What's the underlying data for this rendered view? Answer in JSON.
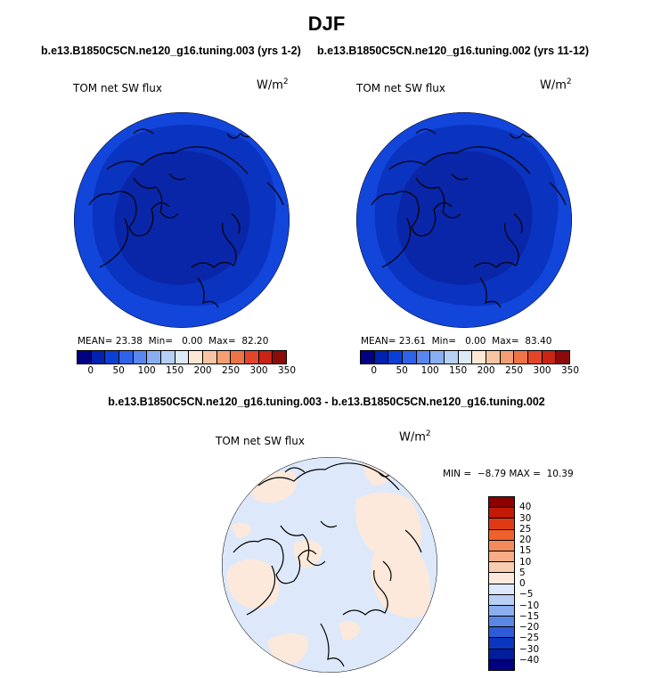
{
  "title": "DJF",
  "panel_left": {
    "case": "b.e13.B1850C5CN.ne120_g16.tuning.003 (yrs 1-2)",
    "variable": "TOM net SW flux",
    "units_base": "W/m",
    "units_exp": "2",
    "mean_label": "MEAN=",
    "mean_value": "23.38",
    "min_label": "Min=",
    "min_value": "0.00",
    "max_label": "Max=",
    "max_value": "82.20"
  },
  "panel_right": {
    "case": "b.e13.B1850C5CN.ne120_g16.tuning.002 (yrs 11-12)",
    "variable": "TOM net SW flux",
    "units_base": "W/m",
    "units_exp": "2",
    "mean_label": "MEAN=",
    "mean_value": "23.61",
    "min_label": "Min=",
    "min_value": "0.00",
    "max_label": "Max=",
    "max_value": "83.40"
  },
  "panel_diff": {
    "title": "b.e13.B1850C5CN.ne120_g16.tuning.003 - b.e13.B1850C5CN.ne120_g16.tuning.002",
    "variable": "TOM net SW flux",
    "units_base": "W/m",
    "units_exp": "2",
    "minmax_text": "MIN =  −8.79 MAX =  10.39"
  },
  "abs_colorbar": {
    "labels": [
      "0",
      "50",
      "100",
      "150",
      "200",
      "250",
      "300",
      "350"
    ],
    "colors": [
      "#000080",
      "#0022b0",
      "#0a3fd6",
      "#2e62e8",
      "#5a86ee",
      "#8aaef2",
      "#b6cff5",
      "#dce9f7",
      "#fde6d3",
      "#f8c4a2",
      "#f39e73",
      "#ec7447",
      "#e2452a",
      "#c92414",
      "#8b0a0a"
    ]
  },
  "diff_colorbar": {
    "labels": [
      "40",
      "30",
      "25",
      "20",
      "15",
      "10",
      "5",
      "0",
      "−5",
      "−10",
      "−15",
      "−20",
      "−25",
      "−30",
      "−40"
    ],
    "colors": [
      "#8b0000",
      "#c21a05",
      "#e03a14",
      "#f0602c",
      "#f48a5a",
      "#f7ad87",
      "#f9cdb0",
      "#fce9db",
      "#dde9fa",
      "#b9d0f4",
      "#8aaeee",
      "#5a86e6",
      "#2e5cd8",
      "#0a36bf",
      "#001e9a",
      "#000080"
    ]
  },
  "colors": {
    "land_line": "#000000",
    "abs_ocean_outer": "#1245da",
    "abs_mid": "#0a33c0",
    "abs_inner": "#0a26a8",
    "diff_base": "#dde9fa",
    "diff_pos": "#fce9db"
  }
}
